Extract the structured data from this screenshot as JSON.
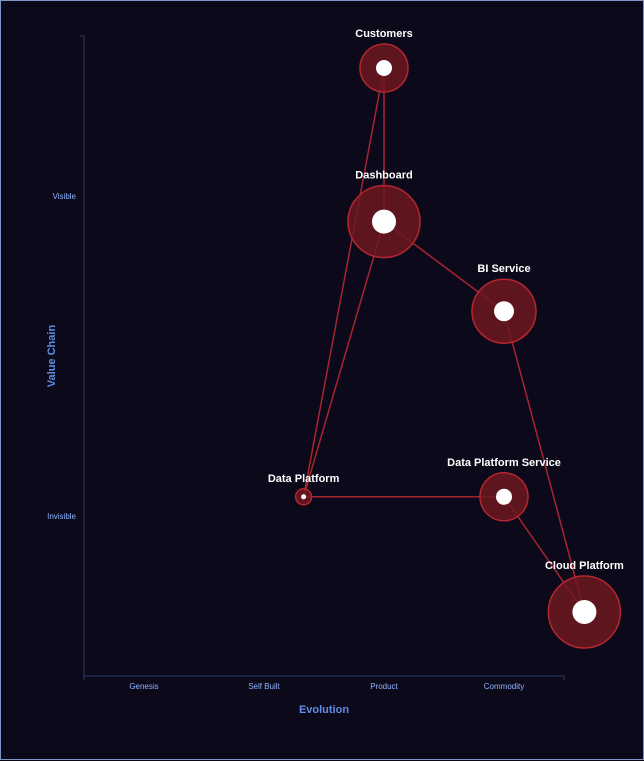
{
  "chart_data": {
    "type": "scatter",
    "subtype": "wardley-map",
    "xlabel": "Evolution",
    "ylabel": "Value Chain",
    "x_ticks": [
      "Genesis",
      "Self Built",
      "Product",
      "Commodity"
    ],
    "y_ticks": [
      "Visible",
      "Invisible"
    ],
    "grid": false,
    "nodes": [
      {
        "id": "customers",
        "label": "Customers",
        "evolution": 2.5,
        "visibility": 0.95,
        "size": "medium"
      },
      {
        "id": "dashboard",
        "label": "Dashboard",
        "evolution": 2.5,
        "visibility": 0.71,
        "size": "xlarge"
      },
      {
        "id": "bi-service",
        "label": "BI Service",
        "evolution": 3.5,
        "visibility": 0.57,
        "size": "large"
      },
      {
        "id": "data-platform",
        "label": "Data Platform",
        "evolution": 1.83,
        "visibility": 0.28,
        "size": "tiny"
      },
      {
        "id": "data-platform-service",
        "label": "Data Platform Service",
        "evolution": 3.5,
        "visibility": 0.28,
        "size": "medium"
      },
      {
        "id": "cloud-platform",
        "label": "Cloud Platform",
        "evolution": 4.17,
        "visibility": 0.1,
        "size": "xlarge"
      }
    ],
    "links": [
      {
        "from": "customers",
        "to": "dashboard"
      },
      {
        "from": "customers",
        "to": "data-platform"
      },
      {
        "from": "dashboard",
        "to": "bi-service"
      },
      {
        "from": "dashboard",
        "to": "data-platform"
      },
      {
        "from": "bi-service",
        "to": "cloud-platform"
      },
      {
        "from": "data-platform",
        "to": "data-platform-service"
      },
      {
        "from": "data-platform-service",
        "to": "cloud-platform"
      }
    ],
    "colors": {
      "background": "#0c0a1a",
      "border": "#7f93c9",
      "node_fill": "#6e1820",
      "node_stroke": "#b3262f",
      "link": "#a8242e",
      "axis": "#2e3a66",
      "tick_label": "#8fb3ff",
      "axis_title": "#5f8de6",
      "node_label": "#ffffff"
    }
  }
}
